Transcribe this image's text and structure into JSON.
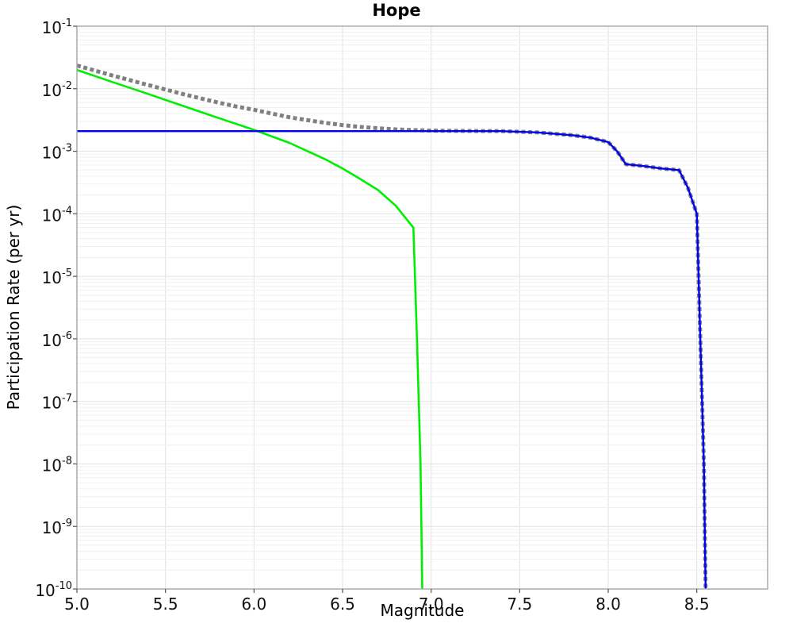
{
  "figure": {
    "title": "Hope",
    "xlabel": "Magnitude",
    "ylabel": "Participation Rate (per yr)"
  },
  "chart_data": {
    "type": "line",
    "title": "Hope",
    "xlabel": "Magnitude",
    "ylabel": "Participation Rate (per yr)",
    "x_scale": "linear",
    "y_scale": "log",
    "xlim": [
      5.0,
      8.9
    ],
    "ylim": [
      1e-10,
      0.1
    ],
    "x_ticks": [
      5.0,
      5.5,
      6.0,
      6.5,
      7.0,
      7.5,
      8.0,
      8.5
    ],
    "y_tick_exponents": [
      -1,
      -2,
      -3,
      -4,
      -5,
      -6,
      -7,
      -8,
      -9,
      -10
    ],
    "grid": true,
    "legend_position": "none",
    "colors": {
      "dotted_gray": "#808080",
      "solid_green": "#00ee00",
      "solid_blue": "#0000f0",
      "grid_minor": "#f0f0f0",
      "grid_major": "#e2e2e2",
      "frame": "#aaaaaa",
      "tick": "#555555"
    },
    "series": [
      {
        "name": "total-rate-dotted-gray",
        "color": "#808080",
        "style": "dotted",
        "width": 5,
        "points": [
          [
            5.0,
            0.0235
          ],
          [
            5.1,
            0.0196
          ],
          [
            5.2,
            0.0163
          ],
          [
            5.3,
            0.0137
          ],
          [
            5.4,
            0.0115
          ],
          [
            5.5,
            0.0097
          ],
          [
            5.6,
            0.0082
          ],
          [
            5.7,
            0.007
          ],
          [
            5.8,
            0.006
          ],
          [
            5.9,
            0.0052
          ],
          [
            6.0,
            0.0046
          ],
          [
            6.1,
            0.004
          ],
          [
            6.2,
            0.0035
          ],
          [
            6.3,
            0.00315
          ],
          [
            6.4,
            0.00285
          ],
          [
            6.5,
            0.00262
          ],
          [
            6.6,
            0.00245
          ],
          [
            6.7,
            0.00233
          ],
          [
            6.8,
            0.00224
          ],
          [
            6.9,
            0.00218
          ],
          [
            7.0,
            0.00214
          ],
          [
            7.2,
            0.00211
          ],
          [
            7.4,
            0.0021
          ],
          [
            7.6,
            0.002
          ],
          [
            7.8,
            0.0018
          ],
          [
            7.9,
            0.00165
          ],
          [
            8.0,
            0.0014
          ],
          [
            8.05,
            0.001
          ],
          [
            8.1,
            0.00062
          ],
          [
            8.2,
            0.00058
          ],
          [
            8.3,
            0.00053
          ],
          [
            8.4,
            0.0005
          ],
          [
            8.45,
            0.00026
          ],
          [
            8.5,
            0.0001
          ],
          [
            8.52,
            1e-06
          ],
          [
            8.54,
            1e-08
          ],
          [
            8.55,
            1e-10
          ]
        ]
      },
      {
        "name": "sub-rate-solid-green",
        "color": "#00ee00",
        "style": "solid",
        "width": 2.6,
        "points": [
          [
            5.0,
            0.02
          ],
          [
            5.2,
            0.0128
          ],
          [
            5.4,
            0.0083
          ],
          [
            5.6,
            0.0053
          ],
          [
            5.8,
            0.0034
          ],
          [
            6.0,
            0.0022
          ],
          [
            6.2,
            0.00136
          ],
          [
            6.4,
            0.00075
          ],
          [
            6.5,
            0.00053
          ],
          [
            6.6,
            0.00036
          ],
          [
            6.7,
            0.00024
          ],
          [
            6.8,
            0.000135
          ],
          [
            6.9,
            6e-05
          ],
          [
            6.92,
            1e-06
          ],
          [
            6.94,
            1e-08
          ],
          [
            6.95,
            1e-10
          ]
        ]
      },
      {
        "name": "supra-rate-solid-blue",
        "color": "#0000f0",
        "style": "solid",
        "width": 2.4,
        "points": [
          [
            5.0,
            0.0021
          ],
          [
            7.0,
            0.0021
          ],
          [
            7.4,
            0.0021
          ],
          [
            7.6,
            0.002
          ],
          [
            7.8,
            0.0018
          ],
          [
            7.9,
            0.00165
          ],
          [
            8.0,
            0.0014
          ],
          [
            8.05,
            0.001
          ],
          [
            8.1,
            0.00062
          ],
          [
            8.2,
            0.00058
          ],
          [
            8.3,
            0.00053
          ],
          [
            8.4,
            0.0005
          ],
          [
            8.45,
            0.00026
          ],
          [
            8.5,
            0.0001
          ],
          [
            8.52,
            1e-06
          ],
          [
            8.54,
            1e-08
          ],
          [
            8.55,
            1e-10
          ]
        ]
      }
    ]
  }
}
